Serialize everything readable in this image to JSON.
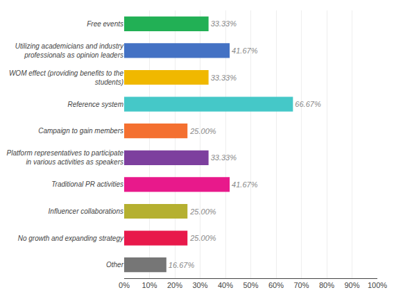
{
  "chart_data": {
    "type": "bar",
    "orientation": "horizontal",
    "categories": [
      "Other",
      "No growth and expanding strategy",
      "Influencer collaborations",
      "Traditional PR activities",
      "Platform representatives to participate\nin various activities as speakers",
      "Campaign to gain members",
      "Reference system",
      "WOM effect (providing benefits to the\nstudents)",
      "Utilizing academicians and industry\nprofessionals as opinion leaders",
      "Free events"
    ],
    "values": [
      16.67,
      25.0,
      25.0,
      41.67,
      33.33,
      25.0,
      66.67,
      33.33,
      41.67,
      33.33
    ],
    "value_labels": [
      "16.67%",
      "25.00%",
      "25.00%",
      "41.67%",
      "33.33%",
      "25.00%",
      "66.67%",
      "33.33%",
      "41.67%",
      "33.33%"
    ],
    "data_labels": true,
    "colors": [
      "#767676",
      "#e8194b",
      "#b5b030",
      "#e8198b",
      "#7d3f9e",
      "#f47030",
      "#45c8c8",
      "#f0b800",
      "#4472c4",
      "#22b055"
    ],
    "xlim": [
      0,
      100
    ],
    "xticks": [
      {
        "value": 0,
        "label": "0%"
      },
      {
        "value": 10,
        "label": "10%"
      },
      {
        "value": 20,
        "label": "20%"
      },
      {
        "value": 30,
        "label": "30%"
      },
      {
        "value": 40,
        "label": "40%"
      },
      {
        "value": 50,
        "label": "50%"
      },
      {
        "value": 60,
        "label": "60%"
      },
      {
        "value": 70,
        "label": "70%"
      },
      {
        "value": 80,
        "label": "80%"
      },
      {
        "value": 90,
        "label": "90%"
      },
      {
        "value": 100,
        "label": "100%"
      }
    ],
    "grid": true
  }
}
